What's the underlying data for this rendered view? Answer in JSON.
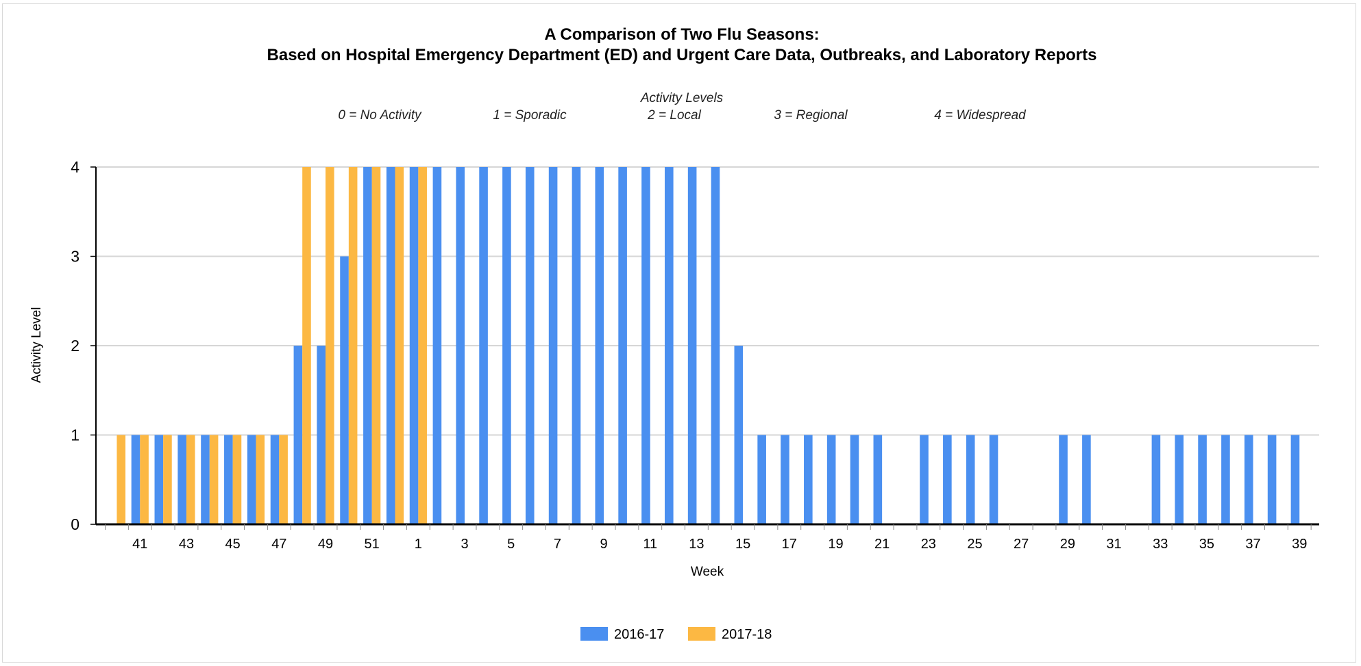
{
  "chart_data": {
    "type": "bar",
    "title": "A Comparison of Two Flu Seasons:",
    "subtitle": "Based on Hospital Emergency Department (ED) and Urgent Care Data, Outbreaks, and Laboratory Reports",
    "annotation_title": "Activity Levels",
    "annotations": [
      "0 = No Activity",
      "1 = Sporadic",
      "2 = Local",
      "3 = Regional",
      "4 = Widespread"
    ],
    "xlabel": "Week",
    "ylabel": "Activity Level",
    "ylim": [
      0,
      4
    ],
    "yticks": [
      "0",
      "1",
      "2",
      "3",
      "4"
    ],
    "grid": true,
    "legend_position": "bottom",
    "categories": [
      "40",
      "41",
      "42",
      "43",
      "44",
      "45",
      "46",
      "47",
      "48",
      "49",
      "50",
      "51",
      "52",
      "1",
      "2",
      "3",
      "4",
      "5",
      "6",
      "7",
      "8",
      "9",
      "10",
      "11",
      "12",
      "13",
      "14",
      "15",
      "16",
      "17",
      "18",
      "19",
      "20",
      "21",
      "22",
      "23",
      "24",
      "25",
      "26",
      "27",
      "28",
      "29",
      "30",
      "31",
      "32",
      "33",
      "34",
      "35",
      "36",
      "37",
      "38",
      "39"
    ],
    "tick_labels": [
      "41",
      "43",
      "45",
      "47",
      "49",
      "51",
      "1",
      "3",
      "5",
      "7",
      "9",
      "11",
      "13",
      "15",
      "17",
      "19",
      "21",
      "23",
      "25",
      "27",
      "29",
      "31",
      "33",
      "35",
      "37",
      "39"
    ],
    "series": [
      {
        "name": "2016-17",
        "color": "#4a8ff0",
        "values": [
          0,
          1,
          1,
          1,
          1,
          1,
          1,
          1,
          2,
          2,
          3,
          4,
          4,
          4,
          4,
          4,
          4,
          4,
          4,
          4,
          4,
          4,
          4,
          4,
          4,
          4,
          4,
          2,
          1,
          1,
          1,
          1,
          1,
          1,
          0,
          1,
          1,
          1,
          1,
          0,
          0,
          1,
          1,
          0,
          0,
          1,
          1,
          1,
          1,
          1,
          1,
          1
        ]
      },
      {
        "name": "2017-18",
        "color": "#fcb843",
        "values": [
          1,
          1,
          1,
          1,
          1,
          1,
          1,
          1,
          4,
          4,
          4,
          4,
          4,
          4,
          null,
          null,
          null,
          null,
          null,
          null,
          null,
          null,
          null,
          null,
          null,
          null,
          null,
          null,
          null,
          null,
          null,
          null,
          null,
          null,
          null,
          null,
          null,
          null,
          null,
          null,
          null,
          null,
          null,
          null,
          null,
          null,
          null,
          null,
          null,
          null,
          null,
          null
        ]
      }
    ]
  }
}
